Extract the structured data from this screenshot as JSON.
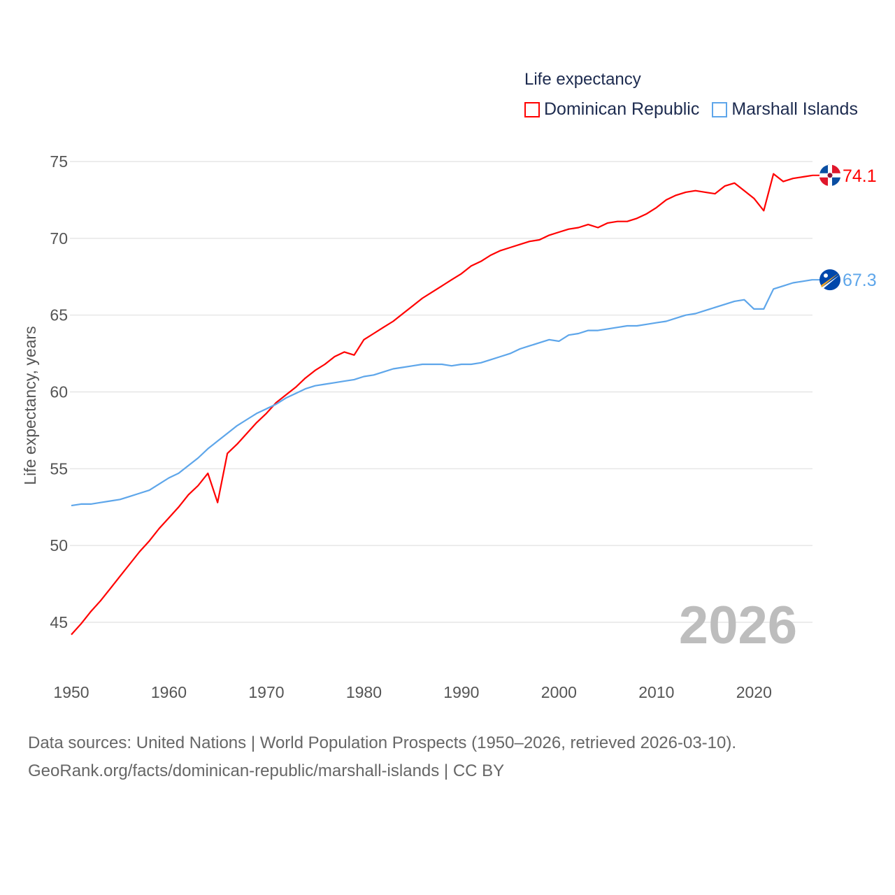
{
  "chart_data": {
    "type": "line",
    "title": "Life expectancy",
    "xlabel": "",
    "ylabel": "Life expectancy, years",
    "xlim": [
      1950,
      2026
    ],
    "ylim": [
      43.5,
      75.5
    ],
    "x_ticks": [
      1950,
      1960,
      1970,
      1980,
      1990,
      2000,
      2010,
      2020
    ],
    "y_ticks": [
      45,
      50,
      55,
      60,
      65,
      70,
      75
    ],
    "grid": true,
    "legend_position": "top-right",
    "current_year_label": "2026",
    "x_start": 1950,
    "series": [
      {
        "name": "Dominican Republic",
        "color": "#ff0000",
        "flag": "dominican-republic-flag-icon",
        "end_label": "74.1",
        "values": [
          44.2,
          44.9,
          45.7,
          46.4,
          47.2,
          48.0,
          48.8,
          49.6,
          50.3,
          51.1,
          51.8,
          52.5,
          53.3,
          53.9,
          54.7,
          52.8,
          56.0,
          56.6,
          57.3,
          58.0,
          58.6,
          59.3,
          59.8,
          60.3,
          60.9,
          61.4,
          61.8,
          62.3,
          62.6,
          62.4,
          63.4,
          63.8,
          64.2,
          64.6,
          65.1,
          65.6,
          66.1,
          66.5,
          66.9,
          67.3,
          67.7,
          68.2,
          68.5,
          68.9,
          69.2,
          69.4,
          69.6,
          69.8,
          69.9,
          70.2,
          70.4,
          70.6,
          70.7,
          70.9,
          70.7,
          71.0,
          71.1,
          71.1,
          71.3,
          71.6,
          72.0,
          72.5,
          72.8,
          73.0,
          73.1,
          73.0,
          72.9,
          73.4,
          73.6,
          73.1,
          72.6,
          71.8,
          74.2,
          73.7,
          73.9,
          74.0,
          74.1
        ]
      },
      {
        "name": "Marshall Islands",
        "color": "#5ea6ea",
        "flag": "marshall-islands-flag-icon",
        "end_label": "67.3",
        "values": [
          52.6,
          52.7,
          52.7,
          52.8,
          52.9,
          53.0,
          53.2,
          53.4,
          53.6,
          54.0,
          54.4,
          54.7,
          55.2,
          55.7,
          56.3,
          56.8,
          57.3,
          57.8,
          58.2,
          58.6,
          58.9,
          59.2,
          59.6,
          59.9,
          60.2,
          60.4,
          60.5,
          60.6,
          60.7,
          60.8,
          61.0,
          61.1,
          61.3,
          61.5,
          61.6,
          61.7,
          61.8,
          61.8,
          61.8,
          61.7,
          61.8,
          61.8,
          61.9,
          62.1,
          62.3,
          62.5,
          62.8,
          63.0,
          63.2,
          63.4,
          63.3,
          63.7,
          63.8,
          64.0,
          64.0,
          64.1,
          64.2,
          64.3,
          64.3,
          64.4,
          64.5,
          64.6,
          64.8,
          65.0,
          65.1,
          65.3,
          65.5,
          65.7,
          65.9,
          66.0,
          65.4,
          65.4,
          66.7,
          66.9,
          67.1,
          67.2,
          67.3
        ]
      }
    ]
  },
  "footer": {
    "line1": "Data sources: United Nations | World Population Prospects (1950–2026, retrieved 2026-03-10).",
    "line2": "GeoRank.org/facts/dominican-republic/marshall-islands | CC BY"
  }
}
